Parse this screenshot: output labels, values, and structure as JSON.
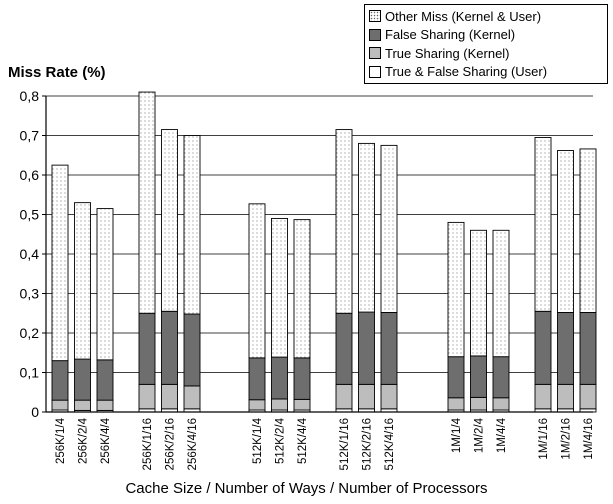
{
  "chart_data": {
    "type": "bar",
    "stacked": true,
    "ylabel": "Miss Rate (%)",
    "xlabel": "Cache Size / Number of Ways / Number of Processors",
    "ylim": [
      0,
      0.8
    ],
    "yticks": [
      "0",
      "0,1",
      "0,2",
      "0,3",
      "0,4",
      "0,5",
      "0,6",
      "0,7",
      "0,8"
    ],
    "grid": true,
    "legend_position": "top-right",
    "categories": [
      "256K/1/4",
      "256K/2/4",
      "256K/4/4",
      "256K/1/16",
      "256K/2/16",
      "256K/4/16",
      "512K/1/4",
      "512K/2/4",
      "512K/4/4",
      "512K/1/16",
      "512K/2/16",
      "512K/4/16",
      "1M/1/4",
      "1M/2/4",
      "1M/4/4",
      "1M/1/16",
      "1M/2/16",
      "1M/4/16"
    ],
    "series": [
      {
        "name": "True & False Sharing (User)",
        "color": "#ffffff",
        "values": [
          0.005,
          0.004,
          0.004,
          0.008,
          0.008,
          0.008,
          0.005,
          0.005,
          0.005,
          0.008,
          0.008,
          0.008,
          0.005,
          0.005,
          0.005,
          0.008,
          0.008,
          0.008
        ]
      },
      {
        "name": "True Sharing (Kernel)",
        "color": "#bdbdbd",
        "values": [
          0.025,
          0.026,
          0.026,
          0.062,
          0.062,
          0.058,
          0.026,
          0.028,
          0.027,
          0.062,
          0.062,
          0.062,
          0.031,
          0.032,
          0.031,
          0.062,
          0.062,
          0.062
        ]
      },
      {
        "name": "False Sharing (Kernel)",
        "color": "#6e6e6e",
        "values": [
          0.1,
          0.104,
          0.102,
          0.18,
          0.185,
          0.182,
          0.106,
          0.106,
          0.105,
          0.18,
          0.183,
          0.182,
          0.104,
          0.105,
          0.104,
          0.185,
          0.182,
          0.182
        ]
      },
      {
        "name": "Other Miss (Kernel & User)",
        "color": "#ffffff",
        "pattern": "dots",
        "values": [
          0.495,
          0.396,
          0.383,
          0.56,
          0.46,
          0.452,
          0.39,
          0.351,
          0.35,
          0.465,
          0.427,
          0.423,
          0.34,
          0.318,
          0.32,
          0.44,
          0.41,
          0.414
        ]
      }
    ]
  }
}
